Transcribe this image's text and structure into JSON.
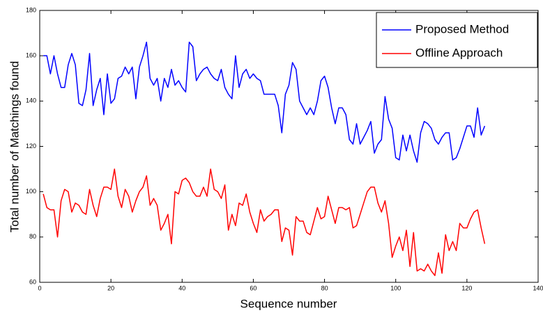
{
  "chart_data": {
    "type": "line",
    "x_label": "Sequence number",
    "y_label": "Total number of Matchings found",
    "x": [
      1,
      2,
      3,
      4,
      5,
      6,
      7,
      8,
      9,
      10,
      11,
      12,
      13,
      14,
      15,
      16,
      17,
      18,
      19,
      20,
      21,
      22,
      23,
      24,
      25,
      26,
      27,
      28,
      29,
      30,
      31,
      32,
      33,
      34,
      35,
      36,
      37,
      38,
      39,
      40,
      41,
      42,
      43,
      44,
      45,
      46,
      47,
      48,
      49,
      50,
      51,
      52,
      53,
      54,
      55,
      56,
      57,
      58,
      59,
      60,
      61,
      62,
      63,
      64,
      65,
      66,
      67,
      68,
      69,
      70,
      71,
      72,
      73,
      74,
      75,
      76,
      77,
      78,
      79,
      80,
      81,
      82,
      83,
      84,
      85,
      86,
      87,
      88,
      89,
      90,
      91,
      92,
      93,
      94,
      95,
      96,
      97,
      98,
      99,
      100,
      101,
      102,
      103,
      104,
      105,
      106,
      107,
      108,
      109,
      110,
      111,
      112,
      113,
      114,
      115,
      116,
      117,
      118,
      119,
      120,
      121,
      122,
      123,
      124,
      125
    ],
    "series": [
      {
        "name": "Proposed Method",
        "color": "#0000ff",
        "values": [
          160,
          160,
          152,
          160,
          152,
          146,
          146,
          156,
          161,
          156,
          139,
          138,
          145,
          161,
          138,
          145,
          150,
          134,
          152,
          139,
          141,
          150,
          151,
          155,
          152,
          155,
          141,
          155,
          160,
          166,
          150,
          147,
          150,
          140,
          150,
          146,
          154,
          147,
          149,
          146,
          144,
          166,
          164,
          149,
          152,
          154,
          155,
          152,
          150,
          149,
          154,
          146,
          143,
          141,
          160,
          146,
          152,
          154,
          150,
          152,
          150,
          149,
          143,
          143,
          143,
          143,
          138,
          126,
          143,
          147,
          157,
          154,
          140,
          137,
          134,
          137,
          134,
          140,
          149,
          151,
          146,
          137,
          130,
          137,
          137,
          134,
          123,
          121,
          130,
          121,
          124,
          127,
          131,
          117,
          121,
          123,
          142,
          132,
          128,
          115,
          114,
          125,
          118,
          125,
          118,
          113,
          126,
          131,
          130,
          128,
          123,
          121,
          124,
          126,
          126,
          114,
          115,
          119,
          124,
          129,
          129,
          124,
          137,
          125,
          129
        ]
      },
      {
        "name": "Offline Approach",
        "color": "#ff0000",
        "values": [
          99,
          93,
          92,
          92,
          80,
          96,
          101,
          100,
          91,
          95,
          94,
          91,
          90,
          101,
          94,
          89,
          97,
          102,
          102,
          101,
          110,
          98,
          93,
          101,
          98,
          91,
          96,
          100,
          102,
          107,
          94,
          97,
          94,
          83,
          86,
          90,
          77,
          100,
          99,
          105,
          106,
          104,
          100,
          98,
          98,
          102,
          98,
          110,
          101,
          100,
          97,
          103,
          83,
          90,
          85,
          95,
          94,
          99,
          91,
          86,
          82,
          92,
          87,
          89,
          90,
          92,
          92,
          78,
          84,
          83,
          72,
          89,
          87,
          87,
          82,
          81,
          87,
          93,
          88,
          89,
          98,
          92,
          86,
          93,
          93,
          92,
          93,
          84,
          85,
          90,
          95,
          100,
          102,
          102,
          95,
          91,
          96,
          86,
          71,
          76,
          80,
          74,
          83,
          67,
          82,
          65,
          66,
          65,
          68,
          65,
          63,
          73,
          64,
          81,
          74,
          78,
          74,
          86,
          84,
          84,
          88,
          91,
          92,
          84,
          77
        ]
      }
    ],
    "xlim": [
      0,
      140
    ],
    "xticks": [
      0,
      20,
      40,
      60,
      80,
      100,
      120,
      140
    ],
    "ylim": [
      60,
      180
    ],
    "yticks": [
      60,
      80,
      100,
      120,
      140,
      160,
      180
    ],
    "legend": "upper right"
  }
}
